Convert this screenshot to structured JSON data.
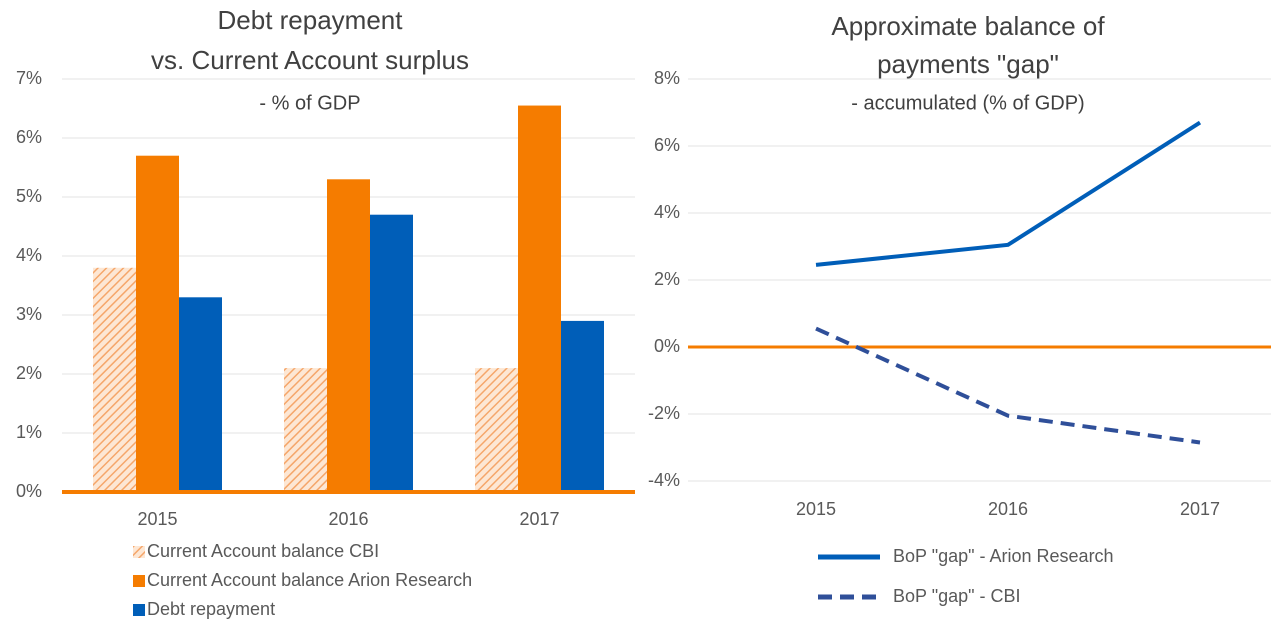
{
  "chart_data": [
    {
      "type": "bar",
      "title": [
        "Debt repayment",
        "vs. Current Account surplus"
      ],
      "subtitle": "- % of GDP",
      "categories": [
        "2015",
        "2016",
        "2017"
      ],
      "series": [
        {
          "name": "Current Account balance CBI",
          "color": "#f5a66a",
          "pattern": "hatch",
          "values": [
            3.8,
            2.1,
            2.1
          ]
        },
        {
          "name": "Current Account balance Arion Research",
          "color": "#f57c00",
          "values": [
            5.7,
            5.3,
            6.55
          ]
        },
        {
          "name": "Debt repayment",
          "color": "#005eb8",
          "values": [
            3.3,
            4.7,
            2.9
          ]
        }
      ],
      "ylim": [
        0,
        7
      ],
      "yticks": [
        {
          "value": 0,
          "label": "0%"
        },
        {
          "value": 1,
          "label": "1%"
        },
        {
          "value": 2,
          "label": "2%"
        },
        {
          "value": 3,
          "label": "3%"
        },
        {
          "value": 4,
          "label": "4%"
        },
        {
          "value": 5,
          "label": "5%"
        },
        {
          "value": 6,
          "label": "6%"
        },
        {
          "value": 7,
          "label": "7%"
        }
      ],
      "grid": true,
      "axis_color": "#f57c00",
      "legend": "bottom"
    },
    {
      "type": "line",
      "title": [
        "Approximate balance of",
        "payments \"gap\""
      ],
      "subtitle": "- accumulated (% of GDP)",
      "categories": [
        "2015",
        "2016",
        "2017"
      ],
      "series": [
        {
          "name": "BoP \"gap\" - Arion Research",
          "color": "#005eb8",
          "dash": false,
          "values": [
            2.45,
            3.05,
            6.7
          ]
        },
        {
          "name": "BoP \"gap\" - CBI",
          "color": "#2f4f99",
          "dash": true,
          "values": [
            0.55,
            -2.05,
            -2.85
          ]
        }
      ],
      "ylim": [
        -4,
        8
      ],
      "yticks": [
        {
          "value": -4,
          "label": "-4%"
        },
        {
          "value": -2,
          "label": "-2%"
        },
        {
          "value": 0,
          "label": "0%"
        },
        {
          "value": 2,
          "label": "2%"
        },
        {
          "value": 4,
          "label": "4%"
        },
        {
          "value": 6,
          "label": "6%"
        },
        {
          "value": 8,
          "label": "8%"
        }
      ],
      "grid": true,
      "axis_color": "#f57c00",
      "legend": "bottom"
    }
  ]
}
